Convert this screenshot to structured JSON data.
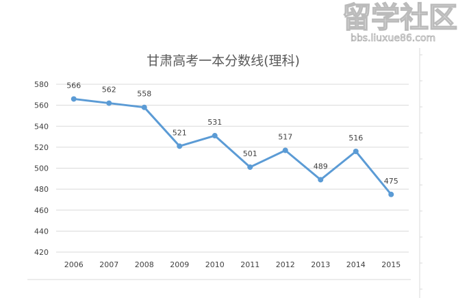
{
  "chart_data": {
    "type": "line",
    "title": "甘肃高考一本分数线(理科)",
    "categories": [
      "2006",
      "2007",
      "2008",
      "2009",
      "2010",
      "2011",
      "2012",
      "2013",
      "2014",
      "2015"
    ],
    "series": [
      {
        "values": [
          566,
          562,
          558,
          521,
          531,
          501,
          517,
          489,
          516,
          475
        ],
        "color": "#5b9bd5"
      }
    ],
    "data_labels": true,
    "xlabel": "",
    "ylabel": "",
    "ylim": [
      420,
      580
    ],
    "yticks": [
      420,
      440,
      460,
      480,
      500,
      520,
      540,
      560,
      580
    ],
    "grid": true,
    "legend": "none"
  },
  "watermark": {
    "main": "留学社区",
    "url": "bbs.liuxue86.com"
  }
}
